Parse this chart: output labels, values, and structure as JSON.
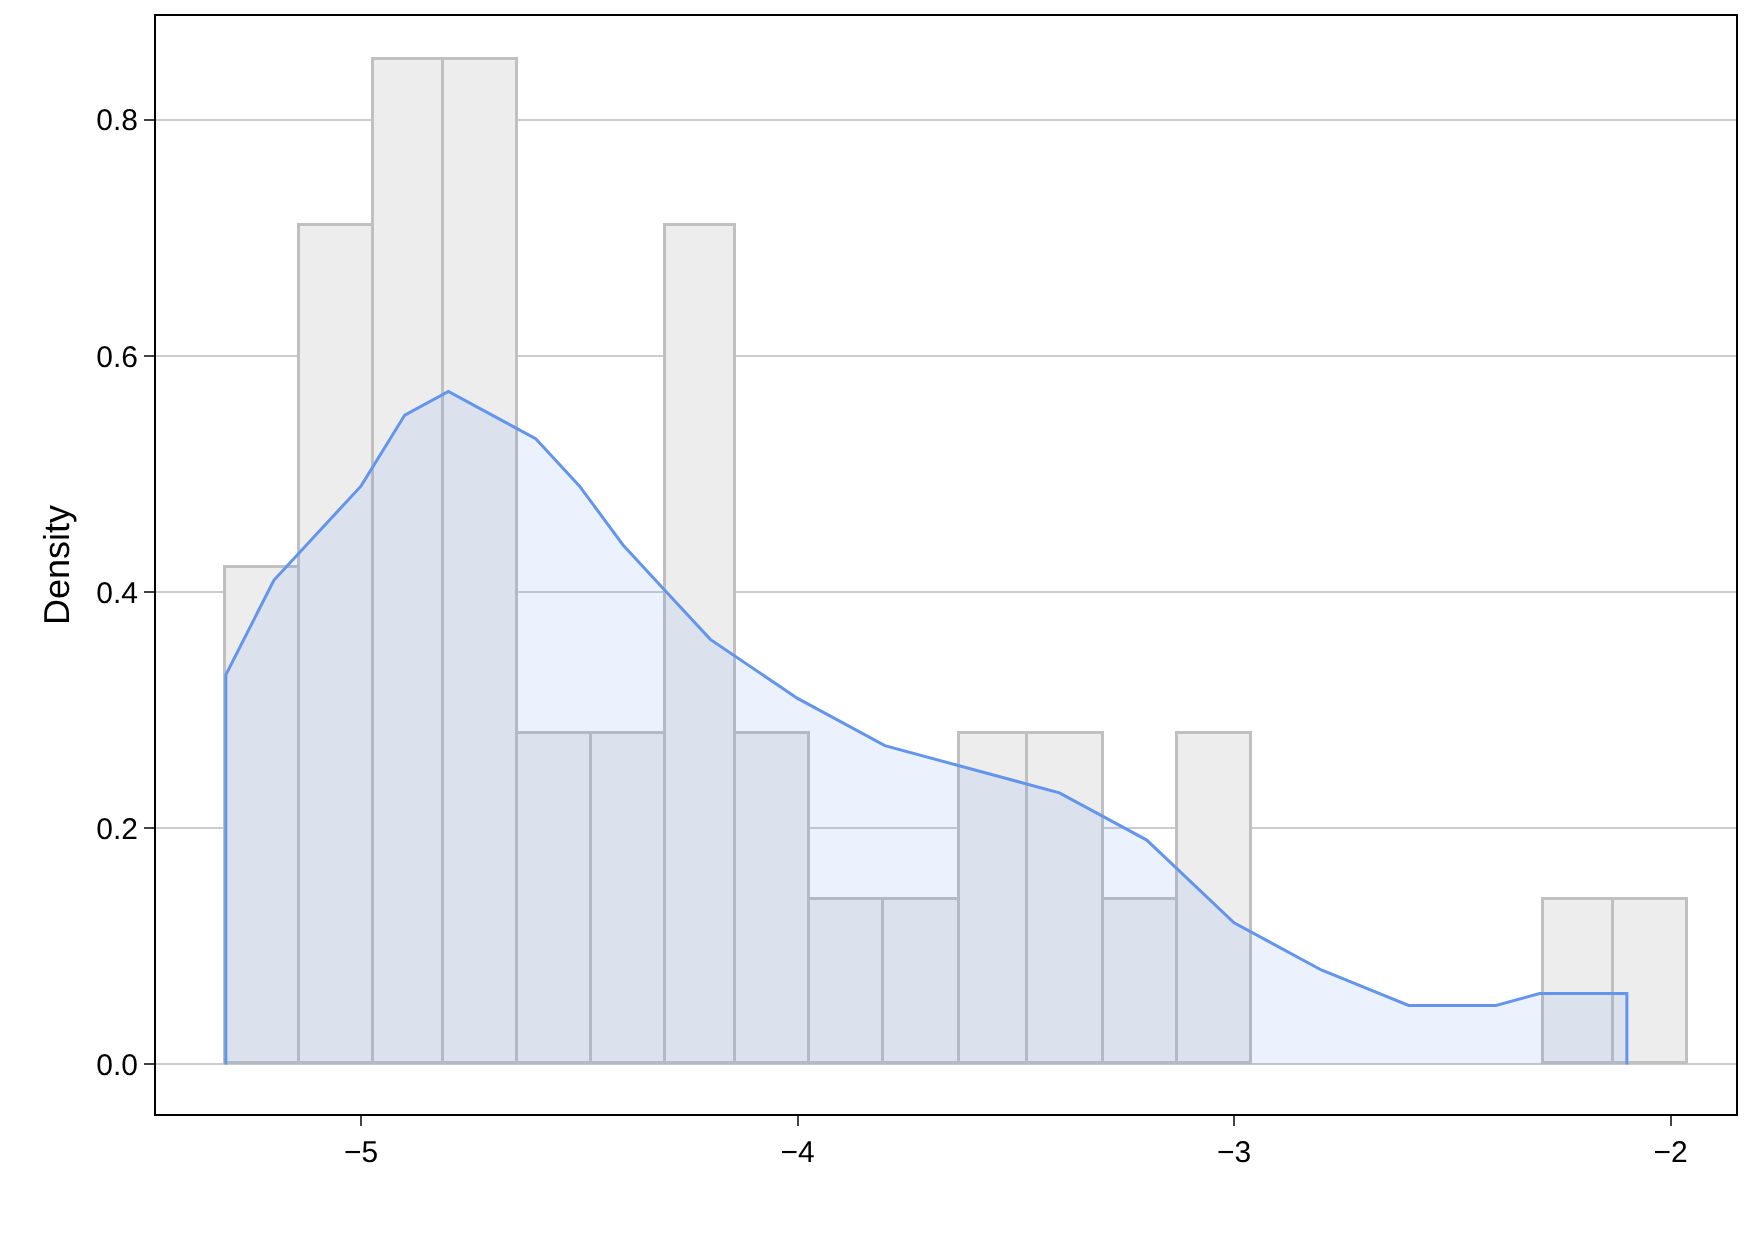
{
  "chart_data": {
    "type": "histogram",
    "ylabel": "Density",
    "bins": [
      -5.31,
      -5.14,
      -4.97,
      -4.81,
      -4.64,
      -4.47,
      -4.3,
      -4.14,
      -3.97,
      -3.8,
      -3.63,
      -3.47,
      -3.3,
      -3.13,
      -2.96,
      -2.29,
      -2.13,
      -1.96
    ],
    "values": [
      0.42,
      0.71,
      0.85,
      0.85,
      0.28,
      0.28,
      0.71,
      0.28,
      0.14,
      0.14,
      0.28,
      0.28,
      0.14,
      0.28,
      0,
      0.14,
      0.14
    ],
    "color": "#ededed",
    "series": [
      {
        "type": "area",
        "color": "#6495ed",
        "x": [
          -5.31,
          -5.31,
          -5.2,
          -5.0,
          -4.9,
          -4.8,
          -4.7,
          -4.6,
          -4.5,
          -4.4,
          -4.3,
          -4.2,
          -4.0,
          -3.8,
          -3.6,
          -3.4,
          -3.2,
          -3.0,
          -2.8,
          -2.6,
          -2.5,
          -2.4,
          -2.3,
          -2.2,
          -2.1,
          -2.1
        ],
        "values": [
          0,
          0.33,
          0.41,
          0.49,
          0.55,
          0.57,
          0.55,
          0.53,
          0.49,
          0.44,
          0.4,
          0.36,
          0.31,
          0.27,
          0.25,
          0.23,
          0.19,
          0.12,
          0.08,
          0.05,
          0.05,
          0.05,
          0.06,
          0.06,
          0.06,
          0
        ]
      }
    ],
    "xlim": [
      -5.47,
      -1.85
    ],
    "xticks": [
      {
        "value": -5,
        "label": "−5"
      },
      {
        "value": -4,
        "label": "−4"
      },
      {
        "value": -3,
        "label": "−3"
      },
      {
        "value": -2,
        "label": "−2"
      }
    ],
    "ylim": [
      -0.042,
      0.888
    ],
    "yticks": [
      {
        "value": 0,
        "label": "0.0"
      },
      {
        "value": 0.2,
        "label": "0.2"
      },
      {
        "value": 0.4,
        "label": "0.4"
      },
      {
        "value": 0.6,
        "label": "0.6"
      },
      {
        "value": 0.8,
        "label": "0.8"
      }
    ],
    "grid": "y"
  }
}
